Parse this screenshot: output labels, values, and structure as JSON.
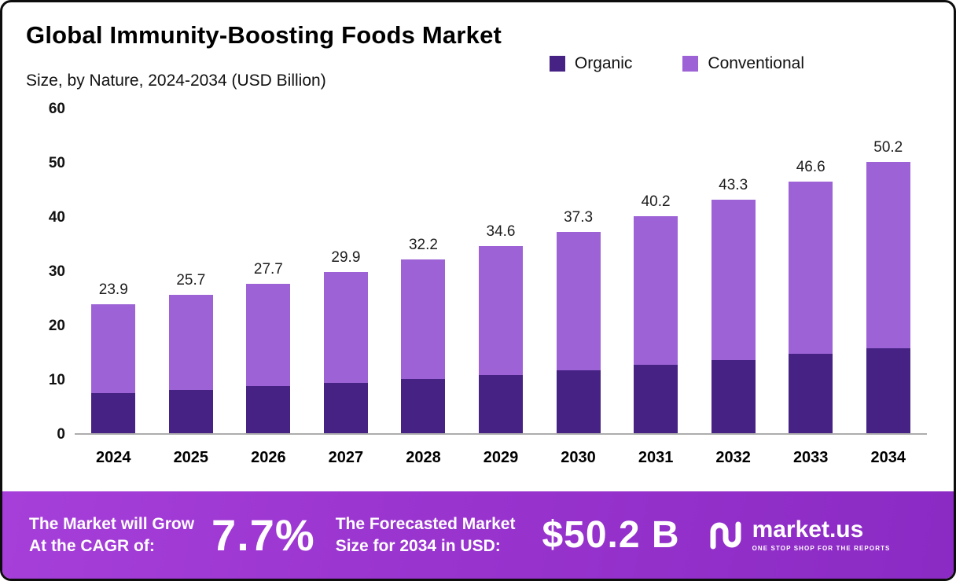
{
  "title": "Global Immunity-Boosting Foods Market",
  "subtitle": "Size, by Nature, 2024-2034 (USD Billion)",
  "legend": {
    "items": [
      {
        "label": "Organic",
        "color": "#452283"
      },
      {
        "label": "Conventional",
        "color": "#9d63d6"
      }
    ]
  },
  "chart_data": {
    "type": "bar",
    "stacked": true,
    "title": "Global Immunity-Boosting Foods Market Size, by Nature, 2024-2034 (USD Billion)",
    "categories": [
      "2024",
      "2025",
      "2026",
      "2027",
      "2028",
      "2029",
      "2030",
      "2031",
      "2032",
      "2033",
      "2034"
    ],
    "series": [
      {
        "name": "Organic",
        "color": "#452283",
        "values": [
          7.5,
          8.0,
          8.7,
          9.3,
          10.0,
          10.8,
          11.7,
          12.6,
          13.6,
          14.7,
          15.8
        ]
      },
      {
        "name": "Conventional",
        "color": "#9d63d6",
        "values": [
          16.4,
          17.7,
          19.0,
          20.6,
          22.2,
          23.8,
          25.6,
          27.6,
          29.7,
          31.9,
          34.4
        ]
      }
    ],
    "totals": [
      23.9,
      25.7,
      27.7,
      29.9,
      32.2,
      34.6,
      37.3,
      40.2,
      43.3,
      46.6,
      50.2
    ],
    "xlabel": "",
    "ylabel": "",
    "ylim": [
      0,
      60
    ],
    "yticks": [
      0,
      10,
      20,
      30,
      40,
      50,
      60
    ],
    "grid": false,
    "legend_position": "top-right"
  },
  "footer": {
    "cagr_label": "The Market will Grow\nAt the CAGR of:",
    "cagr_value": "7.7%",
    "forecast_label": "The Forecasted Market\nSize for 2034 in USD:",
    "forecast_value": "$50.2 B",
    "brand_name": "market.us",
    "brand_tagline": "ONE STOP SHOP FOR THE REPORTS"
  }
}
